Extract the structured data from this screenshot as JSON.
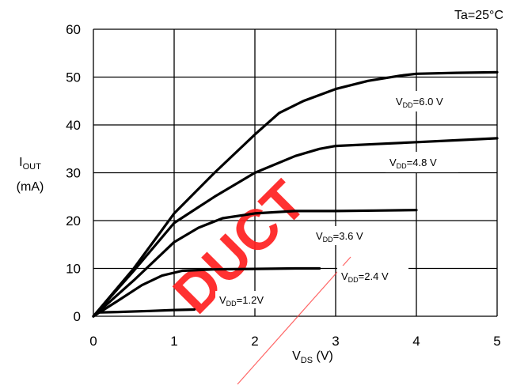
{
  "chart_data": {
    "type": "line",
    "condition": "Ta=25°C",
    "ylabel": {
      "main": "I",
      "sub": "OUT",
      "unit": "(mA)"
    },
    "xlabel": {
      "main": "V",
      "sub": "DS",
      "unit": " (V)"
    },
    "xlim": [
      0,
      5
    ],
    "ylim": [
      0,
      60
    ],
    "xticks": [
      0,
      1,
      2,
      3,
      4,
      5
    ],
    "yticks": [
      0,
      10,
      20,
      30,
      40,
      50,
      60
    ],
    "grid": true,
    "watermark": "DUCT",
    "series": [
      {
        "name": "VDD=6.0 V",
        "label": {
          "main": "V",
          "sub": "DD",
          "rest": "=6.0 V"
        },
        "points": [
          [
            0,
            0
          ],
          [
            0.5,
            10
          ],
          [
            1,
            21.5
          ],
          [
            1.5,
            30
          ],
          [
            2,
            38
          ],
          [
            2.3,
            42.5
          ],
          [
            2.6,
            45
          ],
          [
            3,
            47.5
          ],
          [
            3.4,
            49.2
          ],
          [
            3.8,
            50.3
          ],
          [
            4,
            50.7
          ],
          [
            4.5,
            50.9
          ],
          [
            5,
            51
          ]
        ]
      },
      {
        "name": "VDD=4.8 V",
        "label": {
          "main": "V",
          "sub": "DD",
          "rest": "=4.8 V"
        },
        "points": [
          [
            0,
            0
          ],
          [
            0.5,
            9.5
          ],
          [
            1,
            19.5
          ],
          [
            1.5,
            25
          ],
          [
            2,
            30
          ],
          [
            2.5,
            33.5
          ],
          [
            2.8,
            35
          ],
          [
            3,
            35.6
          ],
          [
            3.5,
            36
          ],
          [
            4,
            36.4
          ],
          [
            4.5,
            36.8
          ],
          [
            5,
            37.2
          ]
        ]
      },
      {
        "name": "VDD=3.6 V",
        "label": {
          "main": "V",
          "sub": "DD",
          "rest": "=3.6 V"
        },
        "points": [
          [
            0,
            0
          ],
          [
            0.5,
            7.5
          ],
          [
            1,
            15.5
          ],
          [
            1.3,
            18.5
          ],
          [
            1.6,
            20.5
          ],
          [
            2,
            21.5
          ],
          [
            2.5,
            22
          ],
          [
            3,
            22
          ],
          [
            3.5,
            22.1
          ],
          [
            4,
            22.2
          ]
        ]
      },
      {
        "name": "VDD=2.4 V",
        "label": {
          "main": "V",
          "sub": "DD",
          "rest": "=2.4 V"
        },
        "points": [
          [
            0,
            0
          ],
          [
            0.3,
            3.2
          ],
          [
            0.6,
            6.5
          ],
          [
            0.85,
            8.5
          ],
          [
            1.1,
            9.5
          ],
          [
            1.5,
            9.8
          ],
          [
            2,
            9.9
          ],
          [
            2.5,
            10
          ],
          [
            2.8,
            10
          ]
        ]
      },
      {
        "name": "VDD=1.2V",
        "label": {
          "main": "V",
          "sub": "DD",
          "rest": "=1.2V"
        },
        "points": [
          [
            0,
            0
          ],
          [
            0.06,
            0.8
          ],
          [
            0.3,
            0.9
          ],
          [
            0.7,
            1.1
          ],
          [
            1,
            1.3
          ],
          [
            1.25,
            1.4
          ]
        ]
      }
    ]
  }
}
